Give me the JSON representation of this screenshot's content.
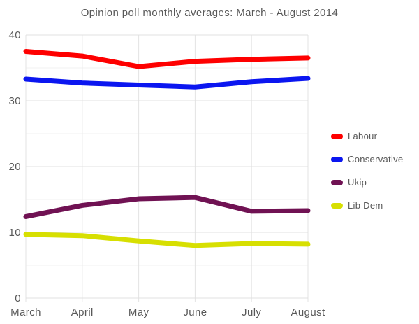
{
  "chart_data": {
    "type": "line",
    "title": "Opinion poll monthly averages: March - August 2014",
    "categories": [
      "March",
      "April",
      "May",
      "June",
      "July",
      "August"
    ],
    "series": [
      {
        "name": "Labour",
        "color": "#fe0000",
        "values": [
          37.5,
          36.8,
          35.2,
          36.0,
          36.3,
          36.5
        ]
      },
      {
        "name": "Conservative",
        "color": "#0b16f0",
        "values": [
          33.3,
          32.7,
          32.4,
          32.1,
          32.9,
          33.4
        ]
      },
      {
        "name": "Ukip",
        "color": "#701253",
        "values": [
          12.4,
          14.1,
          15.1,
          15.3,
          13.2,
          13.3
        ]
      },
      {
        "name": "Lib Dem",
        "color": "#d7df01",
        "values": [
          9.7,
          9.5,
          8.7,
          8.0,
          8.3,
          8.2
        ]
      }
    ],
    "ylim": [
      0,
      40
    ],
    "y_ticks": [
      0,
      10,
      20,
      30,
      40
    ],
    "y_minor_ticks": [
      5,
      15,
      25,
      35
    ],
    "grid": true,
    "legend_position": "right",
    "colors": {
      "text": "#595959",
      "grid_major": "#e0e0e0",
      "grid_minor": "#f1f1f1",
      "grid_vertical": "#e3e3e3"
    }
  }
}
